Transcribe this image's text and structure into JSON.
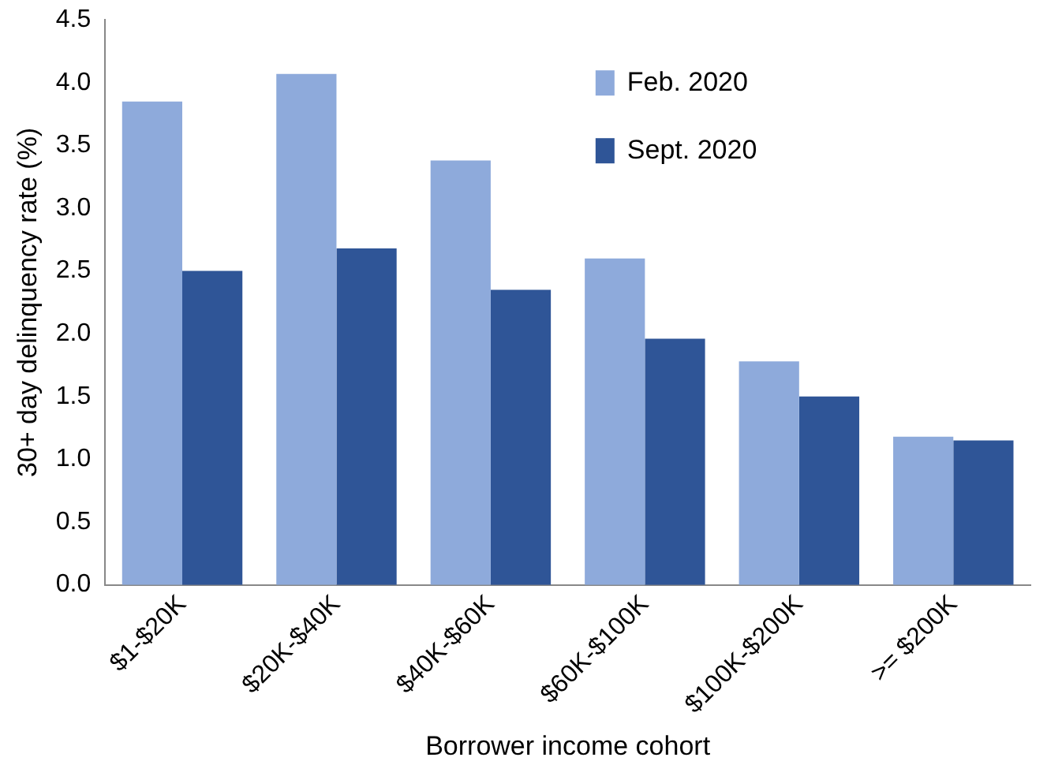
{
  "chart_data": {
    "type": "bar",
    "xlabel": "Borrower income cohort",
    "ylabel": "30+ day delinquency rate (%)",
    "categories": [
      "$1-$20K",
      "$20K-$40K",
      "$40K-$60K",
      "$60K-$100K",
      "$100K-$200K",
      ">= $200K"
    ],
    "series": [
      {
        "name": "Feb. 2020",
        "color": "#8eaadb",
        "values": [
          3.85,
          4.07,
          3.38,
          2.6,
          1.78,
          1.18
        ]
      },
      {
        "name": "Sept. 2020",
        "color": "#2f5597",
        "values": [
          2.5,
          2.68,
          2.35,
          1.96,
          1.5,
          1.15
        ]
      }
    ],
    "ylim": [
      0,
      4.5
    ],
    "yticks": [
      {
        "value": 0,
        "label": "0.0"
      },
      0.5,
      {
        "value": 1,
        "label": "1.0"
      },
      1.5,
      {
        "value": 2,
        "label": "2.0"
      },
      2.5,
      {
        "value": 3,
        "label": "3.0"
      },
      3.5,
      {
        "value": 4,
        "label": "4.0"
      },
      4.5
    ],
    "grid": false,
    "legend": "top right"
  }
}
